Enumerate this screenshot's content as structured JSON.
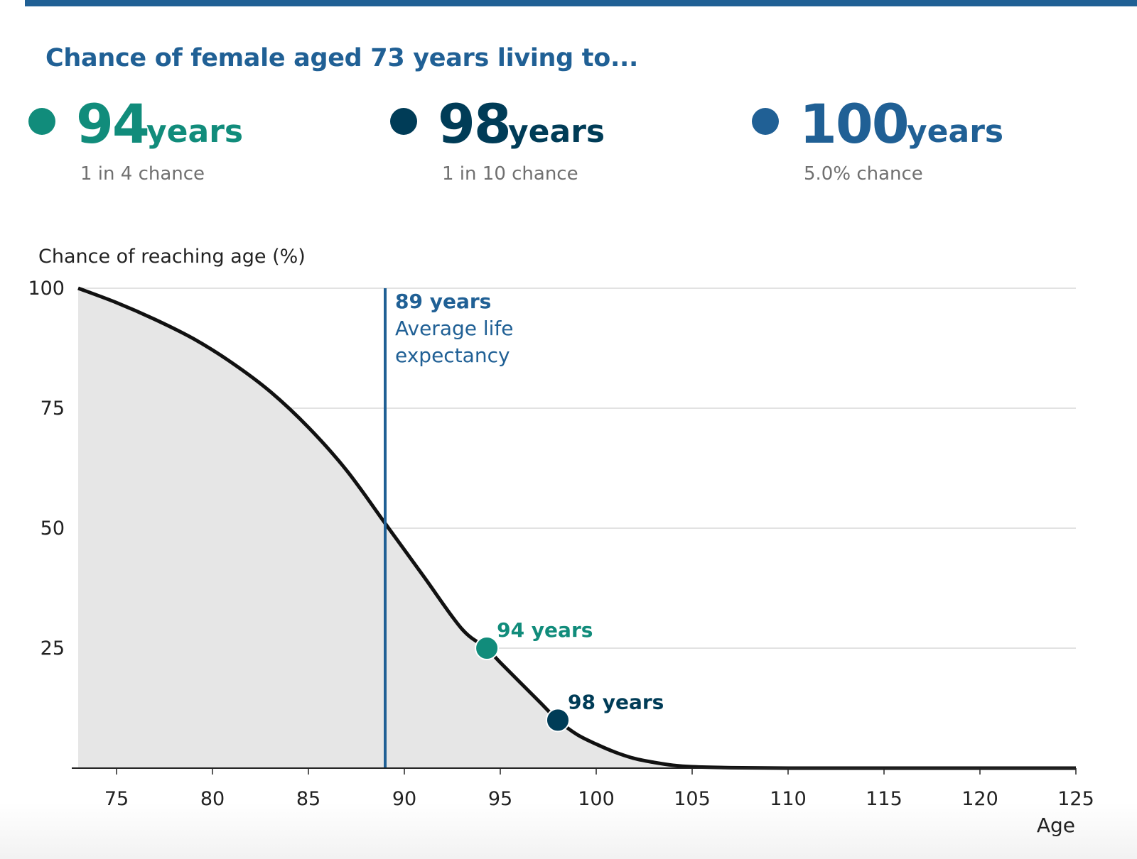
{
  "headline": "Chance of female aged 73 years living to...",
  "stats": [
    {
      "age": "94",
      "unit": "years",
      "chance": "1 in 4 chance",
      "color": "#118c7b"
    },
    {
      "age": "98",
      "unit": "years",
      "chance": "1 in 10 chance",
      "color": "#003c57"
    },
    {
      "age": "100",
      "unit": "years",
      "chance": "5.0% chance",
      "color": "#206095"
    }
  ],
  "chart_data": {
    "type": "area",
    "ylabel": "Chance of reaching age (%)",
    "xlabel": "Age",
    "xlim": [
      73,
      125
    ],
    "ylim": [
      0,
      100
    ],
    "x_ticks": [
      75,
      80,
      85,
      90,
      95,
      100,
      105,
      110,
      115,
      120,
      125
    ],
    "y_ticks": [
      25,
      50,
      75,
      100
    ],
    "grid": true,
    "series": [
      {
        "x": [
          73,
          75,
          77,
          79,
          81,
          83,
          85,
          87,
          89,
          91,
          93,
          94.3,
          95,
          97,
          98,
          99,
          100,
          101,
          102,
          103,
          104,
          105,
          107,
          110,
          115,
          120,
          125
        ],
        "y": [
          100,
          97,
          93.5,
          89.5,
          84.5,
          78.5,
          71,
          62,
          51,
          40,
          29,
          25,
          22,
          14,
          10,
          7,
          5,
          3.3,
          2,
          1.2,
          0.6,
          0.3,
          0.1,
          0,
          0,
          0,
          0
        ]
      }
    ],
    "reference_line": {
      "x": 89,
      "label_bold": "89 years",
      "label_line1": "Average life",
      "label_line2": "expectancy",
      "color": "#206095"
    },
    "markers": [
      {
        "x": 94.3,
        "y": 25,
        "label": "94 years",
        "color": "#118c7b"
      },
      {
        "x": 98,
        "y": 10,
        "label": "98 years",
        "color": "#003c57"
      }
    ]
  }
}
